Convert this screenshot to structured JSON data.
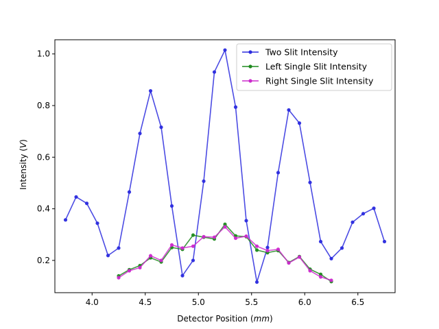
{
  "chart_data": {
    "type": "line",
    "title": "",
    "xlabel": "Detector Position (",
    "xlabel_unit": "mm",
    "xlabel_suffix": ")",
    "ylabel": "Intensity (",
    "ylabel_unit": "V",
    "ylabel_suffix": ")",
    "xlim": [
      3.65,
      6.85
    ],
    "ylim": [
      0.075,
      1.055
    ],
    "xticks": [
      4.0,
      4.5,
      5.0,
      5.5,
      6.0,
      6.5
    ],
    "xtick_labels": [
      "4.0",
      "4.5",
      "5.0",
      "5.5",
      "6.0",
      "6.5"
    ],
    "yticks": [
      0.2,
      0.4,
      0.6,
      0.8,
      1.0
    ],
    "ytick_labels": [
      "0.2",
      "0.4",
      "0.6",
      "0.8",
      "1.0"
    ],
    "grid": false,
    "legend": "top-right",
    "series": [
      {
        "name": "Two Slit Intensity",
        "color": "#2b2bde",
        "x": [
          3.75,
          3.85,
          3.95,
          4.05,
          4.15,
          4.25,
          4.35,
          4.45,
          4.55,
          4.65,
          4.75,
          4.85,
          4.95,
          5.05,
          5.15,
          5.25,
          5.35,
          5.45,
          5.55,
          5.65,
          5.75,
          5.85,
          5.95,
          6.05,
          6.15,
          6.25,
          6.35,
          6.45,
          6.55,
          6.65,
          6.75
        ],
        "y": [
          0.357,
          0.446,
          0.421,
          0.344,
          0.219,
          0.248,
          0.465,
          0.692,
          0.857,
          0.716,
          0.411,
          0.141,
          0.2,
          0.507,
          0.93,
          1.015,
          0.794,
          0.354,
          0.116,
          0.25,
          0.54,
          0.783,
          0.732,
          0.502,
          0.273,
          0.207,
          0.248,
          0.348,
          0.381,
          0.402,
          0.273
        ]
      },
      {
        "name": "Left Single Slit Intensity",
        "color": "#1f8a1f",
        "x": [
          4.25,
          4.35,
          4.45,
          4.55,
          4.65,
          4.75,
          4.85,
          4.95,
          5.05,
          5.15,
          5.25,
          5.35,
          5.45,
          5.55,
          5.65,
          5.75,
          5.85,
          5.95,
          6.05,
          6.15,
          6.25
        ],
        "y": [
          0.14,
          0.164,
          0.18,
          0.21,
          0.194,
          0.25,
          0.243,
          0.298,
          0.29,
          0.283,
          0.34,
          0.295,
          0.292,
          0.24,
          0.23,
          0.238,
          0.192,
          0.215,
          0.166,
          0.146,
          0.118
        ]
      },
      {
        "name": "Right Single Slit Intensity",
        "color": "#cc2acc",
        "x": [
          4.25,
          4.35,
          4.45,
          4.55,
          4.65,
          4.75,
          4.85,
          4.95,
          5.05,
          5.15,
          5.25,
          5.35,
          5.45,
          5.55,
          5.65,
          5.75,
          5.85,
          5.95,
          6.05,
          6.15,
          6.25
        ],
        "y": [
          0.133,
          0.16,
          0.172,
          0.218,
          0.2,
          0.26,
          0.248,
          0.255,
          0.292,
          0.29,
          0.33,
          0.286,
          0.294,
          0.255,
          0.238,
          0.243,
          0.19,
          0.213,
          0.16,
          0.136,
          0.123
        ]
      }
    ]
  }
}
